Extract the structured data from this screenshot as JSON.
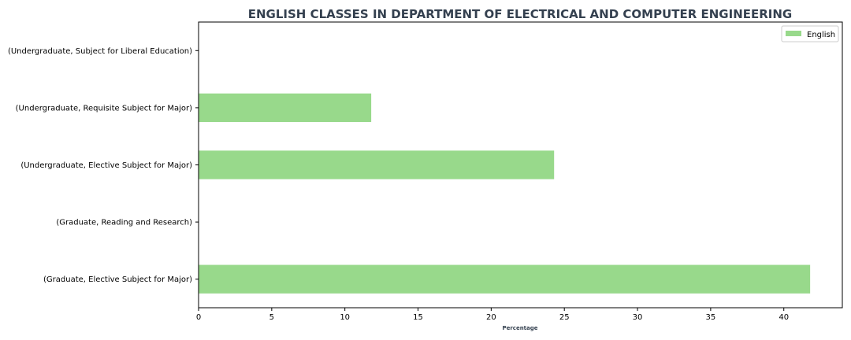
{
  "chart_data": {
    "type": "bar",
    "orientation": "horizontal",
    "title": "ENGLISH CLASSES IN DEPARTMENT OF ELECTRICAL AND COMPUTER ENGINEERING",
    "xlabel": "Percentage",
    "ylabel": "",
    "categories": [
      "(Undergraduate, Subject for Liberal Education)",
      "(Undergraduate, Requisite Subject for Major)",
      "(Undergraduate, Elective Subject for Major)",
      "(Graduate, Reading and Research)",
      "(Graduate, Elective Subject for Major)"
    ],
    "series": [
      {
        "name": "English",
        "color": "#98d98b",
        "values": [
          0,
          11.8,
          24.3,
          0,
          41.8
        ]
      }
    ],
    "xlim": [
      0,
      44
    ],
    "xticks": [
      0,
      5,
      10,
      15,
      20,
      25,
      30,
      35,
      40
    ],
    "grid": false,
    "legend_position": "top-right",
    "title_color": "#34404f"
  }
}
